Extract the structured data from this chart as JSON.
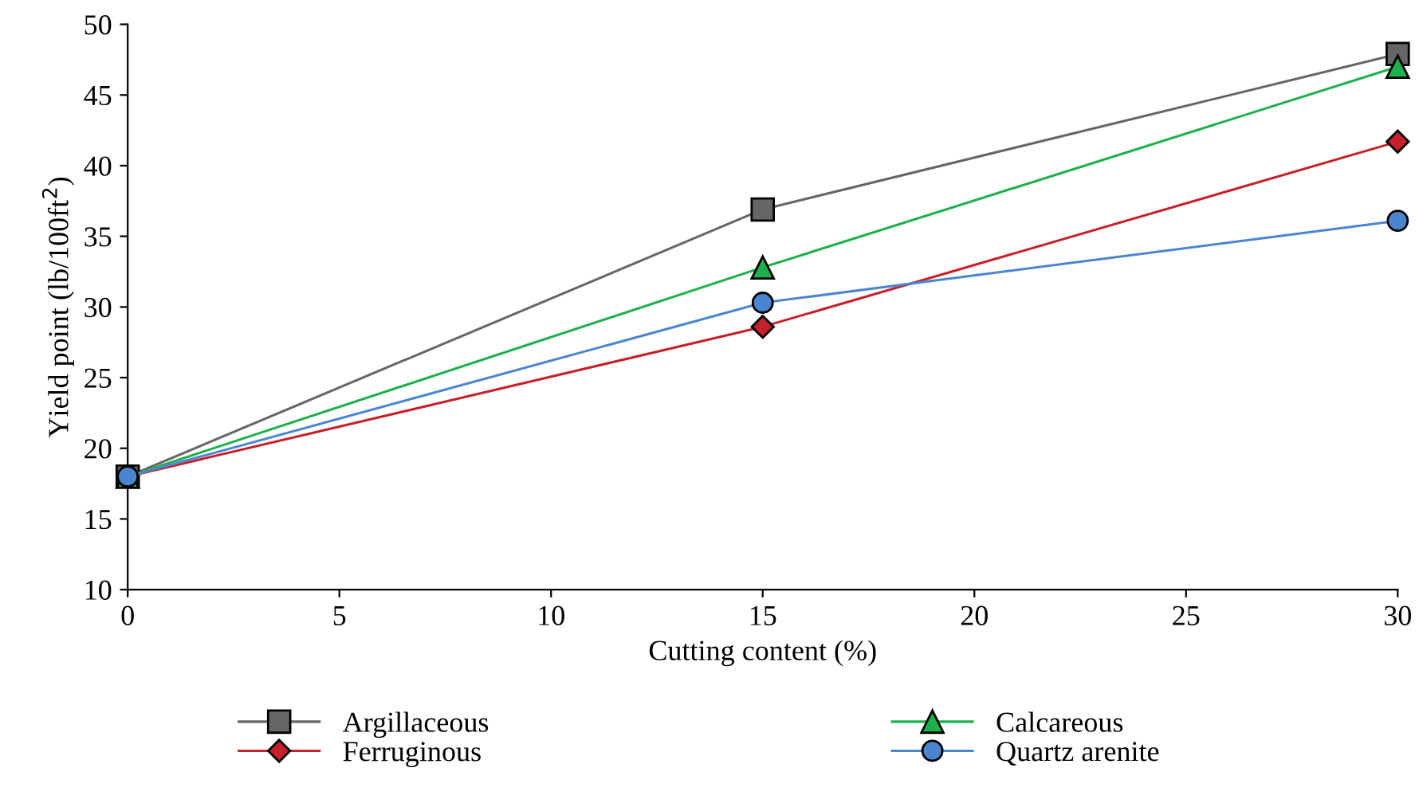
{
  "chart_data": {
    "type": "line",
    "xlabel": "Cutting content (%)",
    "ylabel": "Yield point (lb/100ft$^{2}$)",
    "x": [
      0,
      15,
      30
    ],
    "xlim": [
      0,
      30
    ],
    "xticks": [
      0,
      5,
      10,
      15,
      20,
      25,
      30
    ],
    "ylim": [
      10,
      50
    ],
    "yticks": [
      10,
      15,
      20,
      25,
      30,
      35,
      40,
      45,
      50
    ],
    "grid": false,
    "legend": "bottom",
    "line_style": "solid",
    "series": [
      {
        "name": "Argillaceous",
        "color": "#666666",
        "marker": "square",
        "values": [
          18,
          36.9,
          47.9
        ]
      },
      {
        "name": "Ferruginous",
        "color": "#c8202a",
        "marker": "diamond",
        "values": [
          18,
          28.6,
          41.7
        ]
      },
      {
        "name": "Calcareous",
        "color": "#1db04b",
        "marker": "triangle",
        "values": [
          18,
          32.8,
          47.0
        ]
      },
      {
        "name": "Quartz arenite",
        "color": "#4a86cf",
        "marker": "circle",
        "values": [
          18,
          30.3,
          36.1
        ]
      }
    ]
  }
}
